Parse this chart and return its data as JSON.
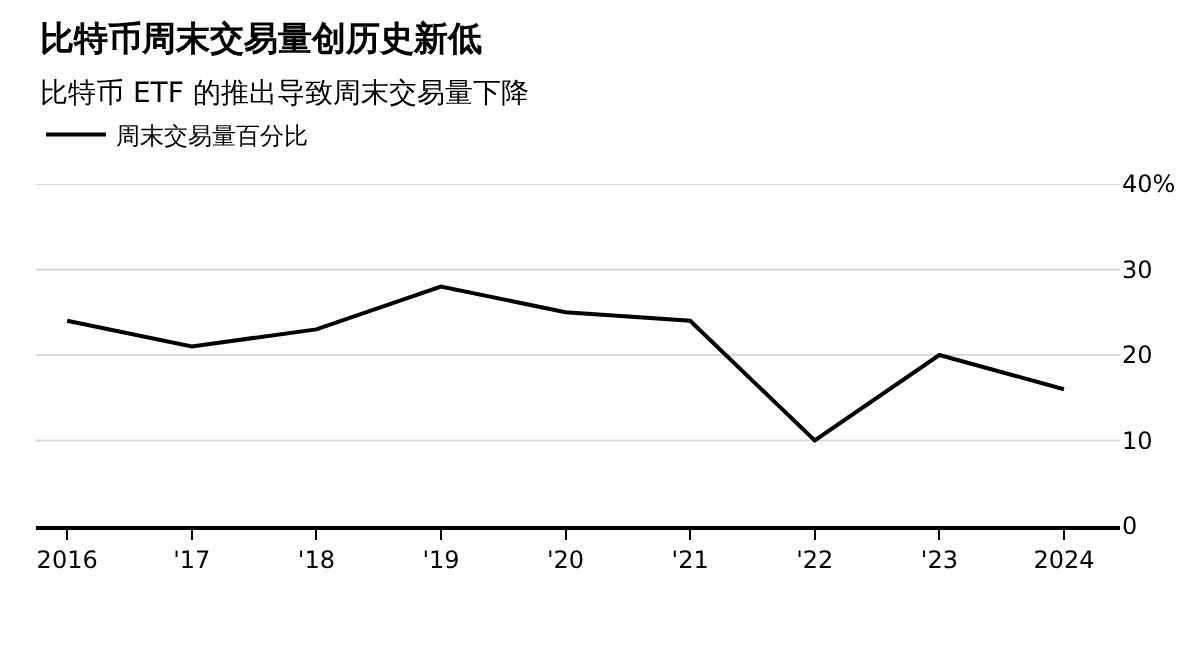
{
  "chart_data": {
    "type": "line",
    "title": "比特币周末交易量创历史新低",
    "subtitle": "比特币 ETF 的推出导致周末交易量下降",
    "categories": [
      "2016",
      "'17",
      "'18",
      "'19",
      "'20",
      "'21",
      "'22",
      "'23",
      "2024"
    ],
    "series": [
      {
        "name": "周末交易量百分比",
        "color": "#000000",
        "values": [
          24,
          21,
          23,
          28,
          25,
          24,
          10,
          20,
          16
        ]
      }
    ],
    "ylim": [
      0,
      40
    ],
    "yticks": [
      0,
      10,
      20,
      30,
      {
        "value": 40,
        "label": "40%"
      }
    ],
    "grid": "y",
    "legend": "top left",
    "marker": "none",
    "line_style": "solid"
  }
}
